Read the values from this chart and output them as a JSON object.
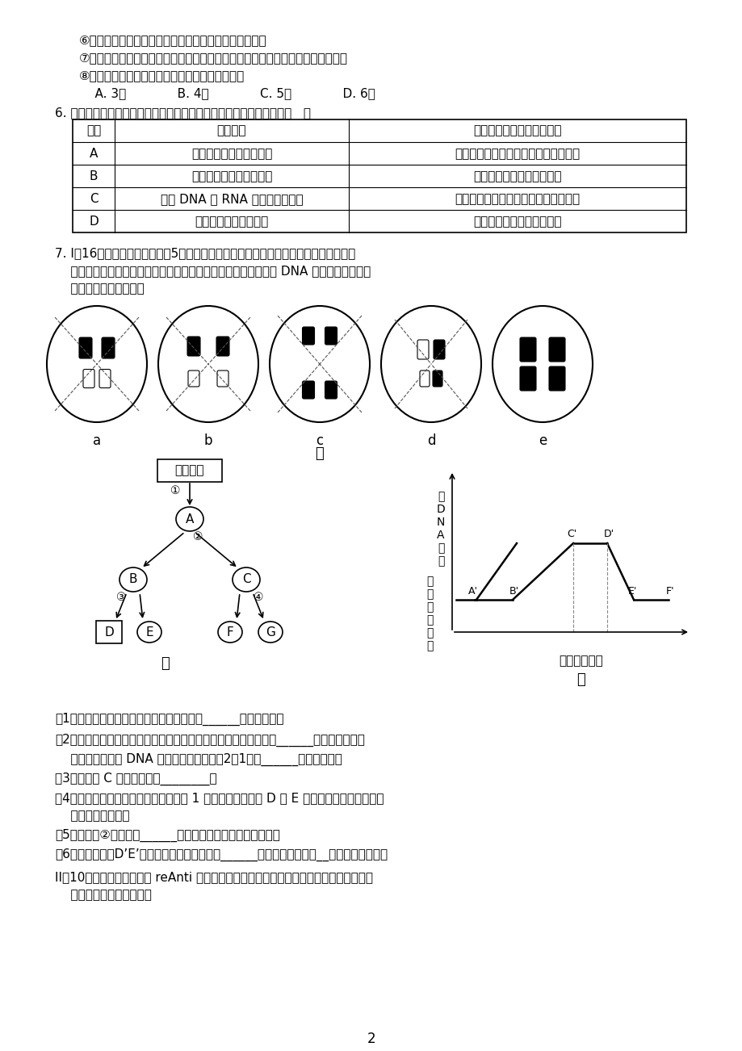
{
  "page_number": "2",
  "background_color": "#ffffff",
  "line1": "⑥酶通过为反应物供能和降低活化能来提高化学反应速率",
  "line2": "⑦真核细胞的核膜上有核孔，脆氧核糖核酸等大分子物质可以通过核孔进入细胞质",
  "line3": "⑧细胞在分化过程中细胞膜上的蛋白质会发生改变",
  "choices": "    A. 3项             B. 4项             C. 5项             D. 6项",
  "q6_label": "6. 以下关于实验目的与实验操作的特殊要求或特点的叙述，错误的是（   ）",
  "th0": "编号",
  "th1": "实验目的",
  "th2": "实验操作的特殊要求或特点",
  "tr_A0": "A",
  "tr_A1": "探究温度对酶活性的影响",
  "tr_A2": "不能选择过氧化氢酶催化过氧化氢分解",
  "tr_B0": "B",
  "tr_B1": "观察植物细胞中的线粒体",
  "tr_B2": "不能对材料进行解离和固定",
  "tr_C0": "C",
  "tr_C1": "观察 DNA 和 RNA 在细胞中的分布",
  "tr_C2": "不能使用盐酸增大植物细胞膜的通透性",
  "tr_D0": "D",
  "tr_D1": "提取和分离绿叶中色素",
  "tr_D2": "不能用蔻馏水分离各种色素",
  "q7_t1": "7. I（16分）甲图是某一动物体5个不同时期细胞的示意图，乙图表示某高等哺乳动物减",
  "q7_t2": "    数分裂过程简图，丙图表示在细胞分裂时期细胞内每条染色体上 DNA 的含逗变化曲线。",
  "q7_t3": "    请据图回答以下问题：",
  "jia_label": "甲",
  "yi_label": "乙",
  "bing_label": "丙",
  "egg_cell": "卵原细胞",
  "xib_label": "细胞分裂时期",
  "y_label_1": "每",
  "y_label_2": "DNA",
  "y_label_3": "含",
  "y_label_4": "量",
  "y_label_5": "每",
  "y_label_6": "条",
  "y_label_7": "染",
  "y_label_8": "色",
  "y_label_9": "体",
  "y_label_10": "上",
  "q1": "（1）甲图中含同源染色体的细胞分裂图像有______（填字母）。",
  "q2a": "（2）若是人的皮肤发生层细胞，则该细胞可能会发生类似于甲图中______（填字母）所示",
  "q2b": "    分裂现象，其中 DNA 数和染色体数之比为2：1的是______（填字母）。",
  "q3": "（3）乙图中 C 细胞的名称是________。",
  "q4a": "（4）在不考虑染色体变异的情况下，由 1 个卵原细胞生成的 D 与 E 在基因组成上存在差异，",
  "q4b": "    则其原因可能是。",
  "q5": "（5）乙图中②过程中的______是导致染色体数目减半的原因。",
  "q6b": "（6）在丙图中，D’E’段所能代表的分裂时期是______，对应甲图中应是__细胞（填字母）。",
  "qII_a": "II（10分）以下为人工合成 reAnti 基因，转入猪成纤维细胞，做成转基因克隆猪的培育过",
  "qII_b": "    程示意图，请据图回答："
}
